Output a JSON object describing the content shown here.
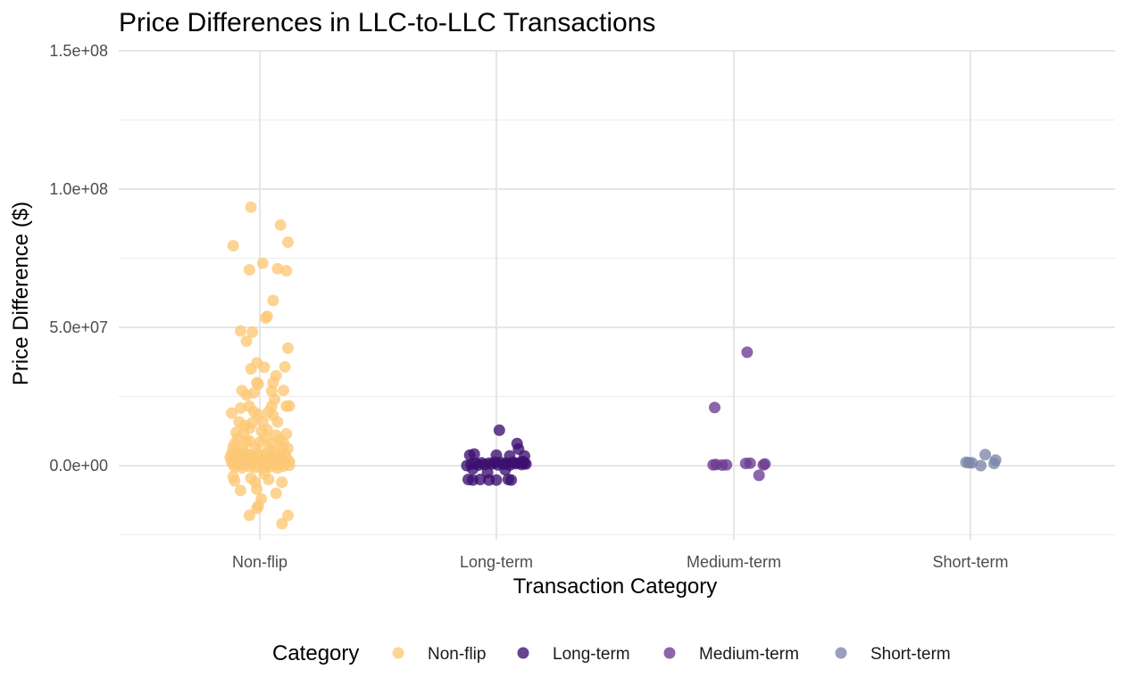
{
  "chart_data": {
    "type": "scatter",
    "title": "Price Differences in LLC-to-LLC Transactions",
    "xlabel": "Transaction Category",
    "ylabel": "Price Difference ($)",
    "categories": [
      "Non-flip",
      "Long-term",
      "Medium-term",
      "Short-term"
    ],
    "yticks": [
      0,
      50000000,
      100000000,
      150000000
    ],
    "ytick_labels": [
      "0.0e+00",
      "5.0e+07",
      "1.0e+08",
      "1.5e+08"
    ],
    "ylim": [
      -25000000,
      150000000
    ],
    "grid": true,
    "legend": {
      "title": "Category",
      "position": "bottom",
      "entries": [
        "Non-flip",
        "Long-term",
        "Medium-term",
        "Short-term"
      ]
    },
    "series": [
      {
        "name": "Non-flip",
        "color": "#FDC874",
        "points": [
          [
            -0.18,
            79500000
          ],
          [
            -0.06,
            93500000
          ],
          [
            -0.07,
            70800000
          ],
          [
            0.02,
            73200000
          ],
          [
            0.14,
            87000000
          ],
          [
            0.19,
            80800000
          ],
          [
            0.12,
            71200000
          ],
          [
            0.18,
            70500000
          ],
          [
            0.09,
            59700000
          ],
          [
            0.04,
            53400000
          ],
          [
            0.05,
            54000000
          ],
          [
            -0.13,
            48700000
          ],
          [
            -0.05,
            48300000
          ],
          [
            -0.09,
            45000000
          ],
          [
            0.19,
            42500000
          ],
          [
            -0.02,
            37200000
          ],
          [
            -0.06,
            35000000
          ],
          [
            0.03,
            35600000
          ],
          [
            0.17,
            35700000
          ],
          [
            0.11,
            32500000
          ],
          [
            -0.02,
            30000000
          ],
          [
            -0.01,
            29500000
          ],
          [
            0.09,
            30000000
          ],
          [
            -0.12,
            27200000
          ],
          [
            -0.04,
            26400000
          ],
          [
            0.08,
            27000000
          ],
          [
            0.16,
            27200000
          ],
          [
            -0.09,
            25500000
          ],
          [
            0.1,
            24000000
          ],
          [
            -0.07,
            21500000
          ],
          [
            -0.13,
            20800000
          ],
          [
            0.08,
            21500000
          ],
          [
            0.18,
            21500000
          ],
          [
            0.2,
            21600000
          ],
          [
            -0.19,
            19000000
          ],
          [
            -0.04,
            19500000
          ],
          [
            -0.01,
            18500000
          ],
          [
            0.06,
            19500000
          ],
          [
            0.09,
            18200000
          ],
          [
            -0.14,
            15800000
          ],
          [
            -0.1,
            14500000
          ],
          [
            -0.05,
            15500000
          ],
          [
            0.02,
            16000000
          ],
          [
            0.12,
            15800000
          ],
          [
            -0.07,
            13500000
          ],
          [
            0.05,
            13000000
          ],
          [
            -0.16,
            12000000
          ],
          [
            -0.11,
            11500000
          ],
          [
            0.01,
            12500000
          ],
          [
            0.11,
            11000000
          ],
          [
            0.18,
            11500000
          ],
          [
            -0.15,
            9800000
          ],
          [
            -0.07,
            9000000
          ],
          [
            0.04,
            10000000
          ],
          [
            0.13,
            9500000
          ],
          [
            -0.17,
            8000000
          ],
          [
            -0.09,
            8500000
          ],
          [
            0.0,
            8500000
          ],
          [
            0.08,
            8000000
          ],
          [
            0.16,
            8200000
          ],
          [
            -0.18,
            6500000
          ],
          [
            -0.12,
            6000000
          ],
          [
            -0.03,
            6500000
          ],
          [
            0.06,
            6000000
          ],
          [
            0.15,
            6500000
          ],
          [
            0.19,
            6200000
          ],
          [
            -0.19,
            4500000
          ],
          [
            -0.14,
            5000000
          ],
          [
            -0.08,
            4000000
          ],
          [
            -0.01,
            4500000
          ],
          [
            0.04,
            4200000
          ],
          [
            0.1,
            5000000
          ],
          [
            0.17,
            4500000
          ],
          [
            -0.2,
            3000000
          ],
          [
            -0.16,
            2500000
          ],
          [
            -0.11,
            3500000
          ],
          [
            -0.05,
            3000000
          ],
          [
            0.0,
            2500000
          ],
          [
            0.06,
            3000000
          ],
          [
            0.12,
            3500000
          ],
          [
            0.18,
            2800000
          ],
          [
            -0.19,
            1500000
          ],
          [
            -0.15,
            1000000
          ],
          [
            -0.1,
            2000000
          ],
          [
            -0.06,
            1200000
          ],
          [
            -0.02,
            1800000
          ],
          [
            0.03,
            1000000
          ],
          [
            0.07,
            2000000
          ],
          [
            0.11,
            1500000
          ],
          [
            0.15,
            1000000
          ],
          [
            0.2,
            1500000
          ],
          [
            -0.18,
            500000
          ],
          [
            -0.13,
            200000
          ],
          [
            -0.09,
            700000
          ],
          [
            -0.04,
            300000
          ],
          [
            0.01,
            800000
          ],
          [
            0.05,
            200000
          ],
          [
            0.09,
            500000
          ],
          [
            0.13,
            300000
          ],
          [
            0.17,
            700000
          ],
          [
            0.2,
            100000
          ],
          [
            -0.17,
            -500000
          ],
          [
            -0.12,
            -800000
          ],
          [
            -0.07,
            -300000
          ],
          [
            -0.03,
            -600000
          ],
          [
            0.02,
            -1000000
          ],
          [
            0.07,
            -400000
          ],
          [
            0.12,
            -900000
          ],
          [
            0.16,
            -200000
          ],
          [
            -0.15,
            3800000
          ],
          [
            -0.1,
            4400000
          ],
          [
            -0.06,
            2200000
          ],
          [
            -0.01,
            3200000
          ],
          [
            0.04,
            2800000
          ],
          [
            0.08,
            3900000
          ],
          [
            0.14,
            2300000
          ],
          [
            -0.18,
            -4000000
          ],
          [
            -0.17,
            -5500000
          ],
          [
            -0.13,
            -9000000
          ],
          [
            -0.06,
            -4500000
          ],
          [
            -0.03,
            -6000000
          ],
          [
            -0.02,
            -8500000
          ],
          [
            0.03,
            -3000000
          ],
          [
            0.06,
            -5000000
          ],
          [
            0.11,
            -10000000
          ],
          [
            0.15,
            -6000000
          ],
          [
            -0.07,
            -18000000
          ],
          [
            -0.02,
            -15500000
          ],
          [
            -0.01,
            -14500000
          ],
          [
            0.01,
            -12000000
          ],
          [
            0.15,
            -21000000
          ],
          [
            0.19,
            -18000000
          ]
        ]
      },
      {
        "name": "Long-term",
        "color": "#3B0F70",
        "points": [
          [
            0.02,
            12800000
          ],
          [
            0.14,
            8000000
          ],
          [
            0.15,
            6000000
          ],
          [
            0.19,
            3500000
          ],
          [
            -0.18,
            3800000
          ],
          [
            -0.15,
            4200000
          ],
          [
            0.0,
            3800000
          ],
          [
            0.09,
            3500000
          ],
          [
            -0.2,
            0
          ],
          [
            -0.17,
            500000
          ],
          [
            -0.14,
            800000
          ],
          [
            -0.12,
            200000
          ],
          [
            -0.1,
            1000000
          ],
          [
            -0.08,
            400000
          ],
          [
            -0.05,
            900000
          ],
          [
            -0.03,
            600000
          ],
          [
            -0.01,
            1200000
          ],
          [
            0.01,
            300000
          ],
          [
            0.03,
            1100000
          ],
          [
            0.05,
            500000
          ],
          [
            0.07,
            900000
          ],
          [
            0.09,
            200000
          ],
          [
            0.11,
            1200000
          ],
          [
            0.13,
            700000
          ],
          [
            0.15,
            1000000
          ],
          [
            0.17,
            400000
          ],
          [
            0.19,
            900000
          ],
          [
            0.2,
            600000
          ],
          [
            -0.16,
            -1200000
          ],
          [
            0.06,
            -1500000
          ],
          [
            0.18,
            1500000
          ],
          [
            -0.06,
            -2500000
          ],
          [
            -0.19,
            -5000000
          ],
          [
            -0.16,
            -5200000
          ],
          [
            -0.11,
            -5000000
          ],
          [
            -0.05,
            -5200000
          ],
          [
            0.0,
            -5200000
          ],
          [
            0.08,
            -5000000
          ],
          [
            0.1,
            -5200000
          ]
        ]
      },
      {
        "name": "Medium-term",
        "color": "#6B3A92",
        "points": [
          [
            0.09,
            41000000
          ],
          [
            -0.13,
            21000000
          ],
          [
            -0.12,
            400000
          ],
          [
            -0.14,
            300000
          ],
          [
            -0.08,
            200000
          ],
          [
            -0.05,
            300000
          ],
          [
            0.08,
            800000
          ],
          [
            0.11,
            900000
          ],
          [
            0.2,
            300000
          ],
          [
            0.21,
            600000
          ],
          [
            0.17,
            -3500000
          ]
        ]
      },
      {
        "name": "Short-term",
        "color": "#7B86A8",
        "points": [
          [
            0.1,
            4000000
          ],
          [
            0.17,
            2000000
          ],
          [
            0.16,
            800000
          ],
          [
            -0.03,
            1200000
          ],
          [
            -0.01,
            1100000
          ],
          [
            0.01,
            1000000
          ],
          [
            0.07,
            0
          ]
        ]
      }
    ]
  }
}
